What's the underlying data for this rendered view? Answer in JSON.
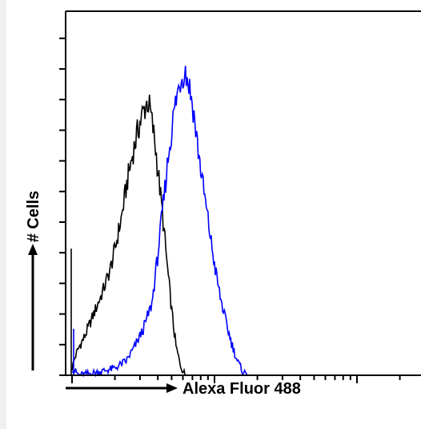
{
  "chart_data": {
    "type": "line",
    "title": "",
    "xlabel": "Alexa Fluor 488",
    "ylabel": "# Cells",
    "x_scale": "log",
    "grid": false,
    "legend": "none",
    "series": [
      {
        "color": "#000000",
        "points": [
          [
            0.0,
            0.02
          ],
          [
            0.02,
            0.05
          ],
          [
            0.05,
            0.08
          ],
          [
            0.09,
            0.11
          ],
          [
            0.13,
            0.15
          ],
          [
            0.17,
            0.19
          ],
          [
            0.22,
            0.24
          ],
          [
            0.27,
            0.3
          ],
          [
            0.31,
            0.37
          ],
          [
            0.35,
            0.45
          ],
          [
            0.39,
            0.55
          ],
          [
            0.43,
            0.63
          ],
          [
            0.47,
            0.7
          ],
          [
            0.5,
            0.74
          ],
          [
            0.53,
            0.77
          ],
          [
            0.55,
            0.74
          ],
          [
            0.58,
            0.66
          ],
          [
            0.61,
            0.55
          ],
          [
            0.64,
            0.43
          ],
          [
            0.67,
            0.3
          ],
          [
            0.7,
            0.18
          ],
          [
            0.73,
            0.08
          ],
          [
            0.76,
            0.03
          ],
          [
            0.78,
            0.01
          ],
          [
            0.8,
            0.0
          ]
        ]
      },
      {
        "color": "#0000ff",
        "points": [
          [
            0.0,
            0.02
          ],
          [
            0.05,
            0.0
          ],
          [
            0.2,
            0.01
          ],
          [
            0.3,
            0.02
          ],
          [
            0.38,
            0.04
          ],
          [
            0.44,
            0.08
          ],
          [
            0.5,
            0.13
          ],
          [
            0.56,
            0.2
          ],
          [
            0.6,
            0.33
          ],
          [
            0.64,
            0.48
          ],
          [
            0.68,
            0.63
          ],
          [
            0.72,
            0.75
          ],
          [
            0.76,
            0.83
          ],
          [
            0.79,
            0.86
          ],
          [
            0.82,
            0.82
          ],
          [
            0.85,
            0.75
          ],
          [
            0.88,
            0.65
          ],
          [
            0.92,
            0.53
          ],
          [
            0.96,
            0.42
          ],
          [
            1.0,
            0.31
          ],
          [
            1.04,
            0.22
          ],
          [
            1.08,
            0.15
          ],
          [
            1.12,
            0.09
          ],
          [
            1.16,
            0.04
          ],
          [
            1.2,
            0.01
          ],
          [
            1.24,
            0.0
          ]
        ]
      }
    ]
  }
}
